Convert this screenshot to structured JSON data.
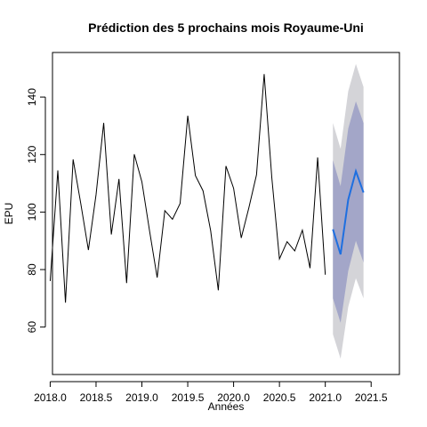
{
  "chart_data": {
    "type": "line",
    "title": "Prédiction des 5 prochains mois Royaume-Uni",
    "xlabel": "Années",
    "ylabel": "EPU",
    "xlim": [
      1.3,
      46.7
    ],
    "ylim": [
      43.5,
      155.5
    ],
    "x_ticks": [
      {
        "pos": 1,
        "label": "2018.0"
      },
      {
        "pos": 7,
        "label": "2018.5"
      },
      {
        "pos": 13,
        "label": "2019.0"
      },
      {
        "pos": 19,
        "label": "2019.5"
      },
      {
        "pos": 25,
        "label": "2020.0"
      },
      {
        "pos": 31,
        "label": "2020.5"
      },
      {
        "pos": 37,
        "label": "2021.0"
      },
      {
        "pos": 43,
        "label": "2021.5"
      }
    ],
    "y_ticks": [
      60,
      80,
      100,
      120,
      140
    ],
    "grid": false,
    "observed": {
      "color": "#000000",
      "values": [
        76,
        114.5,
        68.5,
        118.3,
        103,
        86.8,
        106,
        131,
        92.2,
        111.5,
        75.3,
        120.1,
        110.5,
        93.5,
        77.2,
        100.5,
        97.5,
        103,
        133.5,
        112.7,
        107.4,
        93.5,
        72.8,
        116,
        108.3,
        91,
        101.5,
        113,
        148,
        112,
        83.7,
        89.7,
        86.5,
        93.7,
        80.5,
        119,
        78.2
      ]
    },
    "forecast": {
      "color": "#1e6fe0",
      "values": [
        94,
        85.3,
        104.3,
        114.2,
        106.8
      ],
      "lo80": [
        70,
        61.5,
        79.5,
        90,
        82.5
      ],
      "hi80": [
        118,
        109,
        129,
        138.5,
        131
      ],
      "lo95": [
        57.5,
        49,
        67,
        77,
        70
      ],
      "hi95": [
        131,
        122,
        142,
        151.5,
        143.5
      ],
      "color_80": "#a3a6c8",
      "color_95": "#d4d4d8"
    }
  }
}
